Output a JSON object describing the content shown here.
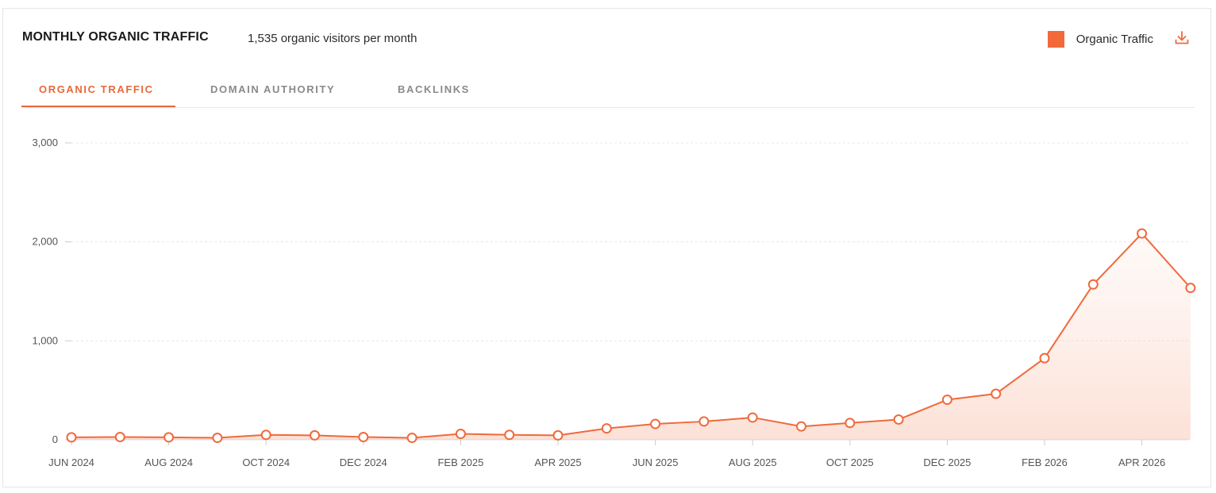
{
  "header": {
    "title": "MONTHLY ORGANIC TRAFFIC",
    "subtitle": "1,535 organic visitors per month",
    "legend_label": "Organic Traffic",
    "download_icon": "download-icon"
  },
  "tabs": [
    {
      "label": "ORGANIC TRAFFIC",
      "active": true
    },
    {
      "label": "DOMAIN AUTHORITY",
      "active": false
    },
    {
      "label": "BACKLINKS",
      "active": false
    }
  ],
  "colors": {
    "accent": "#f26a3a",
    "line": "#ef6a3c",
    "grid": "#e8e8e8"
  },
  "chart_data": {
    "type": "area",
    "title": "MONTHLY ORGANIC TRAFFIC",
    "xlabel": "",
    "ylabel": "",
    "ylim": [
      0,
      3000
    ],
    "yticks": [
      0,
      1000,
      2000,
      3000
    ],
    "ytick_labels": [
      "0",
      "1,000",
      "2,000",
      "3,000"
    ],
    "grid": true,
    "legend": "top-right",
    "x": [
      "2024-06",
      "2024-07",
      "2024-08",
      "2024-09",
      "2024-10",
      "2024-11",
      "2024-12",
      "2025-01",
      "2025-02",
      "2025-03",
      "2025-04",
      "2025-05",
      "2025-06",
      "2025-07",
      "2025-08",
      "2025-09",
      "2025-10",
      "2025-11",
      "2025-12",
      "2026-01",
      "2026-02",
      "2026-03",
      "2026-04",
      "2026-05"
    ],
    "xtick_labels": [
      "JUN 2024",
      "AUG 2024",
      "OCT 2024",
      "DEC 2024",
      "FEB 2025",
      "APR 2025",
      "JUN 2025",
      "AUG 2025",
      "OCT 2025",
      "DEC 2025",
      "FEB 2026",
      "APR 2026"
    ],
    "series": [
      {
        "name": "Organic Traffic",
        "values": [
          25,
          28,
          25,
          20,
          50,
          45,
          28,
          20,
          60,
          50,
          45,
          115,
          160,
          185,
          225,
          135,
          170,
          205,
          405,
          465,
          825,
          1570,
          2085,
          1535
        ]
      }
    ]
  }
}
